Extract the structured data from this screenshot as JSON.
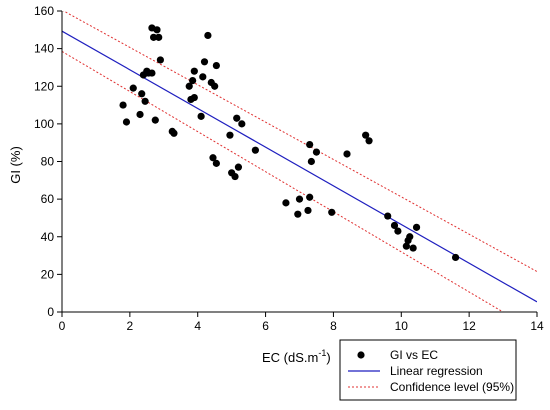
{
  "chart_data": {
    "type": "scatter",
    "xlabel": "EC (dS.m",
    "xlabel_sup": "-1",
    "xlabel_close": ")",
    "ylabel": "GI (%)",
    "xlim": [
      0,
      14
    ],
    "ylim": [
      0,
      160
    ],
    "xticks": [
      "0",
      "2",
      "4",
      "6",
      "8",
      "10",
      "12",
      "14"
    ],
    "yticks": [
      "0",
      "20",
      "40",
      "60",
      "80",
      "100",
      "120",
      "140",
      "160"
    ],
    "grid": false,
    "legend_position": "bottom-right",
    "legend": [
      {
        "label": "GI vs EC",
        "style": "marker"
      },
      {
        "label": "Linear regression",
        "style": "solid-line"
      },
      {
        "label": "Confidence level (95%)",
        "style": "dotted-line"
      }
    ],
    "colors": {
      "points": "#000000",
      "regression": "#1f1fbf",
      "confidence": "#e03030"
    },
    "regression": {
      "x": [
        0,
        14
      ],
      "y": [
        149.3,
        5.4
      ]
    },
    "confidence_upper": {
      "x": [
        0,
        14
      ],
      "y": [
        160.5,
        21.5
      ]
    },
    "confidence_lower": {
      "x": [
        0,
        13
      ],
      "y": [
        138.5,
        0
      ]
    },
    "points": [
      {
        "x": 1.8,
        "y": 110
      },
      {
        "x": 1.9,
        "y": 101
      },
      {
        "x": 2.1,
        "y": 119
      },
      {
        "x": 2.3,
        "y": 105
      },
      {
        "x": 2.35,
        "y": 116
      },
      {
        "x": 2.4,
        "y": 126
      },
      {
        "x": 2.45,
        "y": 112
      },
      {
        "x": 2.5,
        "y": 128
      },
      {
        "x": 2.55,
        "y": 127
      },
      {
        "x": 2.65,
        "y": 127
      },
      {
        "x": 2.65,
        "y": 151
      },
      {
        "x": 2.7,
        "y": 146
      },
      {
        "x": 2.75,
        "y": 102
      },
      {
        "x": 2.8,
        "y": 150
      },
      {
        "x": 2.85,
        "y": 146
      },
      {
        "x": 2.9,
        "y": 134
      },
      {
        "x": 3.25,
        "y": 96
      },
      {
        "x": 3.3,
        "y": 95
      },
      {
        "x": 3.75,
        "y": 120
      },
      {
        "x": 3.8,
        "y": 113
      },
      {
        "x": 3.85,
        "y": 123
      },
      {
        "x": 3.9,
        "y": 114
      },
      {
        "x": 3.9,
        "y": 128
      },
      {
        "x": 4.1,
        "y": 104
      },
      {
        "x": 4.15,
        "y": 125
      },
      {
        "x": 4.2,
        "y": 133
      },
      {
        "x": 4.3,
        "y": 147
      },
      {
        "x": 4.4,
        "y": 122
      },
      {
        "x": 4.45,
        "y": 82
      },
      {
        "x": 4.5,
        "y": 120
      },
      {
        "x": 4.55,
        "y": 79
      },
      {
        "x": 4.55,
        "y": 131
      },
      {
        "x": 4.95,
        "y": 94
      },
      {
        "x": 5.0,
        "y": 74
      },
      {
        "x": 5.1,
        "y": 72
      },
      {
        "x": 5.15,
        "y": 103
      },
      {
        "x": 5.2,
        "y": 77
      },
      {
        "x": 5.3,
        "y": 100
      },
      {
        "x": 5.7,
        "y": 86
      },
      {
        "x": 6.6,
        "y": 58
      },
      {
        "x": 6.95,
        "y": 52
      },
      {
        "x": 7.0,
        "y": 60
      },
      {
        "x": 7.25,
        "y": 54
      },
      {
        "x": 7.3,
        "y": 61
      },
      {
        "x": 7.3,
        "y": 89
      },
      {
        "x": 7.35,
        "y": 80
      },
      {
        "x": 7.5,
        "y": 85
      },
      {
        "x": 7.95,
        "y": 53
      },
      {
        "x": 8.4,
        "y": 84
      },
      {
        "x": 8.95,
        "y": 94
      },
      {
        "x": 9.05,
        "y": 91
      },
      {
        "x": 9.6,
        "y": 51
      },
      {
        "x": 9.8,
        "y": 46
      },
      {
        "x": 9.9,
        "y": 43
      },
      {
        "x": 10.15,
        "y": 35
      },
      {
        "x": 10.2,
        "y": 38
      },
      {
        "x": 10.25,
        "y": 40
      },
      {
        "x": 10.35,
        "y": 34
      },
      {
        "x": 10.45,
        "y": 45
      },
      {
        "x": 11.6,
        "y": 29
      }
    ]
  }
}
